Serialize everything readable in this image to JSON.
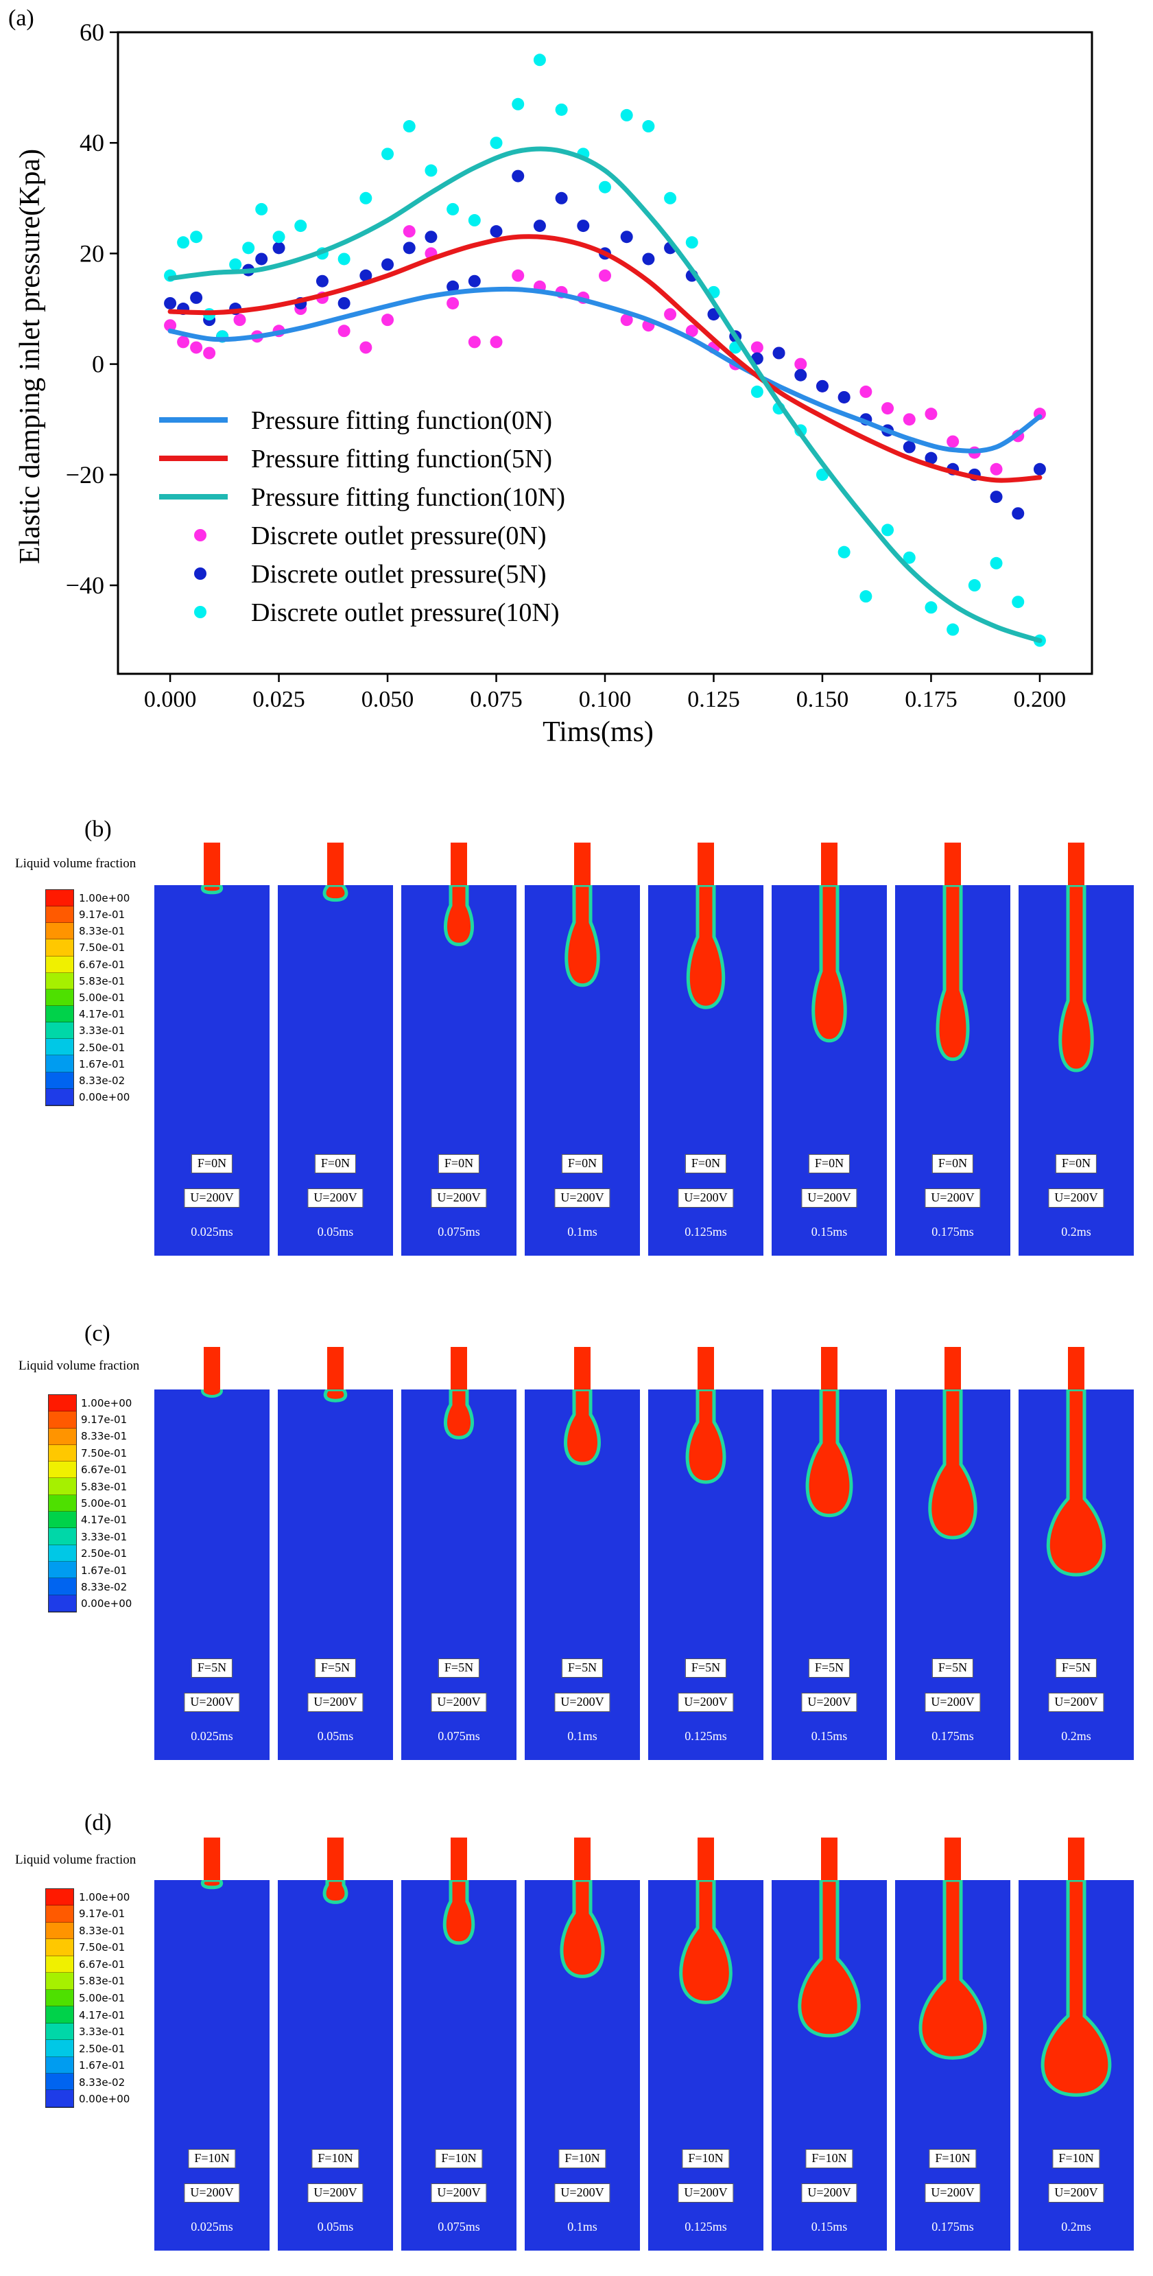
{
  "figure": {
    "panel_a_label": "(a)",
    "panel_b_label": "(b)",
    "panel_c_label": "(c)",
    "panel_d_label": "(d)"
  },
  "chart_data": {
    "type": "scatter",
    "xlabel": "Tims(ms)",
    "ylabel": "Elastic damping inlet pressure(Kpa)",
    "xlim": [
      -0.012,
      0.212
    ],
    "ylim": [
      -56,
      60
    ],
    "xticks": [
      "0.000",
      "0.025",
      "0.050",
      "0.075",
      "0.100",
      "0.125",
      "0.150",
      "0.175",
      "0.200"
    ],
    "yticks": [
      "60",
      "40",
      "20",
      "0",
      "−20",
      "−40"
    ],
    "legend_position": "lower-left",
    "series": [
      {
        "name": "Pressure fitting function(0N)",
        "kind": "line",
        "color": "#2b8ce6",
        "x": [
          0,
          0.01,
          0.02,
          0.03,
          0.04,
          0.05,
          0.06,
          0.07,
          0.08,
          0.09,
          0.1,
          0.11,
          0.12,
          0.13,
          0.14,
          0.15,
          0.16,
          0.17,
          0.18,
          0.19,
          0.2
        ],
        "y": [
          6,
          4.5,
          5,
          6.5,
          8.5,
          10.5,
          12.3,
          13.3,
          13.5,
          12.5,
          10.5,
          8,
          4.5,
          0,
          -4,
          -7.5,
          -10.5,
          -13.5,
          -15.5,
          -15,
          -9.5
        ]
      },
      {
        "name": "Pressure fitting function(5N)",
        "kind": "line",
        "color": "#e8191b",
        "x": [
          0,
          0.01,
          0.02,
          0.03,
          0.04,
          0.05,
          0.06,
          0.07,
          0.08,
          0.09,
          0.1,
          0.11,
          0.12,
          0.13,
          0.14,
          0.15,
          0.16,
          0.17,
          0.18,
          0.19,
          0.2
        ],
        "y": [
          9.5,
          9.3,
          10,
          11.5,
          13.5,
          16,
          19,
          21.5,
          23,
          22.5,
          20,
          15,
          8,
          1,
          -5,
          -9.5,
          -13.5,
          -17,
          -19.5,
          -21,
          -20.5
        ]
      },
      {
        "name": "Pressure fitting function(10N)",
        "kind": "line",
        "color": "#1fb8b3",
        "x": [
          0,
          0.01,
          0.02,
          0.03,
          0.04,
          0.05,
          0.06,
          0.07,
          0.08,
          0.09,
          0.1,
          0.11,
          0.12,
          0.13,
          0.14,
          0.15,
          0.16,
          0.17,
          0.18,
          0.19,
          0.2
        ],
        "y": [
          15.5,
          16.5,
          17,
          19,
          22,
          26,
          31,
          35.5,
          38.5,
          38.5,
          35,
          27,
          17,
          5,
          -7,
          -18,
          -28,
          -37,
          -43.5,
          -47.5,
          -50
        ]
      },
      {
        "name": "Discrete outlet pressure(0N)",
        "kind": "scatter",
        "color": "#ff2ee8",
        "x": [
          0.0,
          0.003,
          0.006,
          0.009,
          0.012,
          0.016,
          0.02,
          0.025,
          0.03,
          0.035,
          0.04,
          0.045,
          0.05,
          0.055,
          0.06,
          0.065,
          0.07,
          0.075,
          0.08,
          0.085,
          0.09,
          0.095,
          0.1,
          0.105,
          0.11,
          0.115,
          0.12,
          0.125,
          0.13,
          0.135,
          0.14,
          0.145,
          0.15,
          0.155,
          0.16,
          0.165,
          0.17,
          0.175,
          0.18,
          0.185,
          0.19,
          0.195,
          0.2
        ],
        "y": [
          7,
          4,
          3,
          2,
          5,
          8,
          5,
          6,
          10,
          12,
          6,
          3,
          8,
          24,
          20,
          11,
          4,
          4,
          16,
          14,
          13,
          12,
          16,
          8,
          7,
          9,
          6,
          3,
          0,
          3,
          2,
          0,
          -4,
          -6,
          -5,
          -8,
          -10,
          -9,
          -14,
          -16,
          -19,
          -13,
          -9
        ]
      },
      {
        "name": "Discrete outlet pressure(5N)",
        "kind": "scatter",
        "color": "#1022cc",
        "x": [
          0.0,
          0.003,
          0.006,
          0.009,
          0.012,
          0.015,
          0.018,
          0.021,
          0.025,
          0.03,
          0.035,
          0.04,
          0.045,
          0.05,
          0.055,
          0.06,
          0.065,
          0.07,
          0.075,
          0.08,
          0.085,
          0.09,
          0.095,
          0.1,
          0.105,
          0.11,
          0.115,
          0.12,
          0.125,
          0.13,
          0.135,
          0.14,
          0.145,
          0.15,
          0.155,
          0.16,
          0.165,
          0.17,
          0.175,
          0.18,
          0.185,
          0.19,
          0.195,
          0.2
        ],
        "y": [
          11,
          10,
          12,
          8,
          5,
          10,
          17,
          19,
          21,
          11,
          15,
          11,
          16,
          18,
          21,
          23,
          14,
          15,
          24,
          34,
          25,
          30,
          25,
          20,
          23,
          19,
          21,
          16,
          9,
          5,
          1,
          2,
          -2,
          -4,
          -6,
          -10,
          -12,
          -15,
          -17,
          -19,
          -20,
          -24,
          -27,
          -19
        ]
      },
      {
        "name": "Discrete outlet pressure(10N)",
        "kind": "scatter",
        "color": "#00f0f0",
        "x": [
          0.0,
          0.003,
          0.006,
          0.009,
          0.012,
          0.015,
          0.018,
          0.021,
          0.025,
          0.03,
          0.035,
          0.04,
          0.045,
          0.05,
          0.055,
          0.06,
          0.065,
          0.07,
          0.075,
          0.08,
          0.085,
          0.09,
          0.095,
          0.1,
          0.105,
          0.11,
          0.115,
          0.12,
          0.125,
          0.13,
          0.135,
          0.14,
          0.145,
          0.15,
          0.155,
          0.16,
          0.165,
          0.17,
          0.175,
          0.18,
          0.185,
          0.19,
          0.195,
          0.2
        ],
        "y": [
          16,
          22,
          23,
          9,
          5,
          18,
          21,
          28,
          23,
          25,
          20,
          19,
          30,
          38,
          43,
          35,
          28,
          26,
          40,
          47,
          55,
          46,
          38,
          32,
          45,
          43,
          30,
          22,
          13,
          3,
          -5,
          -8,
          -12,
          -20,
          -34,
          -42,
          -30,
          -35,
          -44,
          -48,
          -40,
          -36,
          -43,
          -50
        ]
      }
    ]
  },
  "colorbar": {
    "title": "Liquid volume fraction",
    "colors": [
      "#ff1a00",
      "#ff5a00",
      "#ff9400",
      "#ffc800",
      "#f0f000",
      "#a6f000",
      "#4ee000",
      "#00d24a",
      "#00d7a8",
      "#00c8e6",
      "#009cf0",
      "#0064f0",
      "#1e3ce8"
    ],
    "labels": [
      "1.00e+00",
      "9.17e-01",
      "8.33e-01",
      "7.50e-01",
      "6.67e-01",
      "5.83e-01",
      "5.00e-01",
      "4.17e-01",
      "3.33e-01",
      "2.50e-01",
      "1.67e-01",
      "8.33e-02",
      "0.00e+00"
    ]
  },
  "simulations": [
    {
      "force_labels": [
        "F=0N",
        "F=0N",
        "F=0N",
        "F=0N",
        "F=0N",
        "F=0N",
        "F=0N",
        "F=0N"
      ],
      "voltage_labels": [
        "U=200V",
        "U=200V",
        "U=200V",
        "U=200V",
        "U=200V",
        "U=200V",
        "U=200V",
        "U=200V"
      ],
      "time_labels": [
        "0.025ms",
        "0.05ms",
        "0.075ms",
        "0.1ms",
        "0.125ms",
        "0.15ms",
        "0.175ms",
        "0.2ms"
      ],
      "jet_length_fraction": [
        0.02,
        0.04,
        0.16,
        0.27,
        0.33,
        0.42,
        0.47,
        0.5
      ],
      "bulb_width_fraction": [
        0.18,
        0.22,
        0.28,
        0.34,
        0.38,
        0.34,
        0.32,
        0.34
      ]
    },
    {
      "force_labels": [
        "F=5N",
        "F=5N",
        "F=5N",
        "F=5N",
        "F=5N",
        "F=5N",
        "F=5N",
        "F=5N"
      ],
      "voltage_labels": [
        "U=200V",
        "U=200V",
        "U=200V",
        "U=200V",
        "U=200V",
        "U=200V",
        "U=200V",
        "U=200V"
      ],
      "time_labels": [
        "0.025ms",
        "0.05ms",
        "0.075ms",
        "0.1ms",
        "0.125ms",
        "0.15ms",
        "0.175ms",
        "0.2ms"
      ],
      "jet_length_fraction": [
        0.0,
        0.03,
        0.13,
        0.2,
        0.25,
        0.34,
        0.4,
        0.5
      ],
      "bulb_width_fraction": [
        0.18,
        0.2,
        0.28,
        0.36,
        0.4,
        0.48,
        0.5,
        0.62
      ]
    },
    {
      "force_labels": [
        "F=10N",
        "F=10N",
        "F=10N",
        "F=10N",
        "F=10N",
        "F=10N",
        "F=10N",
        "F=10N"
      ],
      "voltage_labels": [
        "U=200V",
        "U=200V",
        "U=200V",
        "U=200V",
        "U=200V",
        "U=200V",
        "U=200V",
        "U=200V"
      ],
      "time_labels": [
        "0.025ms",
        "0.05ms",
        "0.075ms",
        "0.1ms",
        "0.125ms",
        "0.15ms",
        "0.175ms",
        "0.2ms"
      ],
      "jet_length_fraction": [
        0.02,
        0.06,
        0.17,
        0.26,
        0.33,
        0.42,
        0.48,
        0.58
      ],
      "bulb_width_fraction": [
        0.18,
        0.22,
        0.3,
        0.45,
        0.55,
        0.66,
        0.72,
        0.75
      ]
    }
  ]
}
